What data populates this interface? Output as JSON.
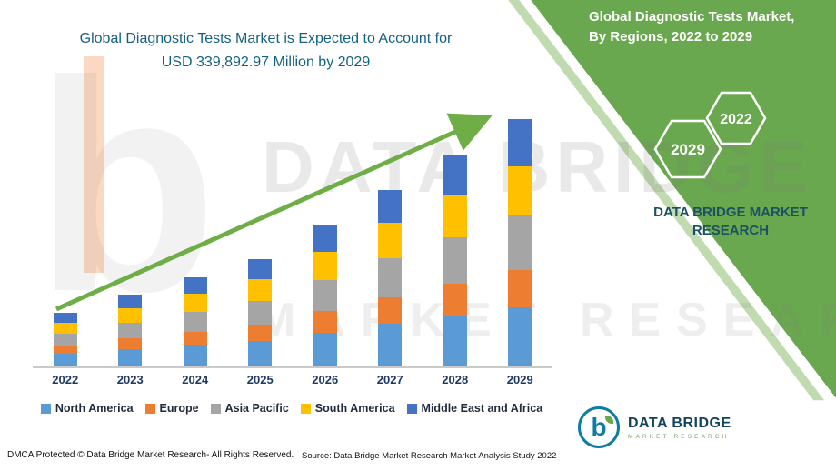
{
  "header": {
    "title_line1": "Global Diagnostic Tests Market is Expected to Account for",
    "title_line2": "USD 339,892.97 Million by 2029",
    "right_line1": "Global Diagnostic Tests Market,",
    "right_line2": "By Regions, 2022 to 2029"
  },
  "side_panel": {
    "hex_left_label": "2029",
    "hex_right_label": "2022",
    "caption_line1": "DATA BRIDGE MARKET",
    "caption_line2": "RESEARCH"
  },
  "watermark": {
    "letter": "b",
    "line1": "DATA BRIDGE",
    "line2": "MARKET RESEARCH"
  },
  "chart_data": {
    "type": "bar",
    "stacked": true,
    "title": "Global Diagnostic Tests Market is Expected to Account for USD 339,892.97 Million by 2029",
    "unit": "USD Million",
    "grid": false,
    "legend_position": "bottom",
    "categories": [
      "2022",
      "2023",
      "2024",
      "2025",
      "2026",
      "2027",
      "2028",
      "2029"
    ],
    "ylim": [
      0,
      339893
    ],
    "series": [
      {
        "name": "North America",
        "color": "#5B9BD5",
        "values": [
          17880,
          23760,
          29520,
          35520,
          46800,
          58320,
          69840,
          81574
        ]
      },
      {
        "name": "Europe",
        "color": "#ED7D31",
        "values": [
          11175,
          14850,
          18450,
          22200,
          29250,
          36450,
          43650,
          50984
        ]
      },
      {
        "name": "Asia Pacific",
        "color": "#A5A5A5",
        "values": [
          16390,
          21780,
          27060,
          32560,
          42900,
          53460,
          64020,
          74776
        ]
      },
      {
        "name": "South America",
        "color": "#FFC000",
        "values": [
          14900,
          19800,
          24600,
          29600,
          39000,
          48600,
          58200,
          67979
        ]
      },
      {
        "name": "Middle East and Africa",
        "color": "#4472C4",
        "values": [
          14155,
          18810,
          23370,
          28120,
          37050,
          46170,
          55290,
          64580
        ]
      }
    ],
    "totals": [
      74500,
      99000,
      123000,
      148000,
      195000,
      243000,
      291000,
      339893
    ],
    "trend_arrow": true
  },
  "footer": {
    "dmca": "DMCA Protected © Data Bridge Market Research- All Rights Reserved.",
    "source": "Source: Data Bridge Market Research Market Analysis Study 2022"
  },
  "logo": {
    "name": "DATA BRIDGE",
    "sub": "MARKET RESEARCH"
  },
  "colors": {
    "brand_green": "#6aa84f",
    "title_teal": "#156082",
    "caption_teal": "#1b5162",
    "axis_label": "#203864"
  }
}
